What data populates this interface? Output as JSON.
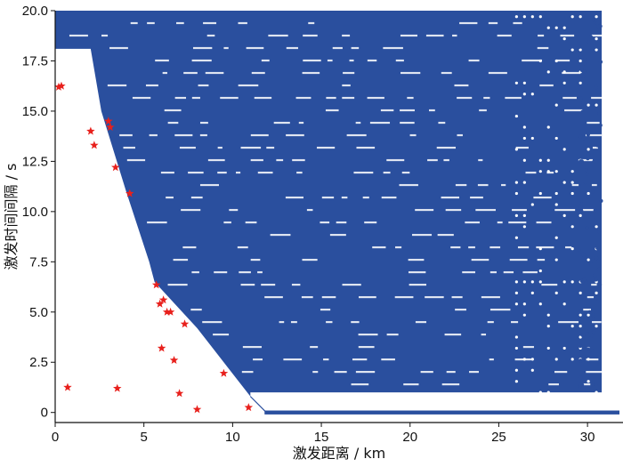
{
  "chart_data": {
    "type": "scatter",
    "xlabel": "激发距离 / km",
    "ylabel": "激发时间间隔 / s",
    "xlim": [
      0,
      32
    ],
    "ylim": [
      -0.5,
      20
    ],
    "xticks": [
      0,
      5,
      10,
      15,
      20,
      25,
      30
    ],
    "yticks": [
      0.0,
      2.5,
      5.0,
      7.5,
      10.0,
      12.5,
      15.0,
      17.5,
      20.0
    ],
    "xtick_labels": [
      "0",
      "5",
      "10",
      "15",
      "20",
      "25",
      "30"
    ],
    "ytick_labels": [
      "0",
      "2.5",
      "5.0",
      "7.5",
      "10.0",
      "12.5",
      "15.0",
      "17.5",
      "20.0"
    ],
    "grid": false,
    "series": [
      {
        "marker": "circle",
        "color": "#2a4f9e",
        "description_points": "dense blue cloud",
        "boundary": [
          [
            0,
            18.1
          ],
          [
            2.0,
            18.1
          ],
          [
            2.6,
            15.0
          ],
          [
            4.0,
            11.0
          ],
          [
            5.3,
            7.5
          ],
          [
            5.6,
            6.5
          ],
          [
            8.0,
            4.2
          ],
          [
            11.0,
            0.8
          ],
          [
            11.2,
            0.6
          ],
          [
            11.7,
            0.0
          ]
        ],
        "floor_band": [
          [
            11.0,
            1.0
          ],
          [
            30.5,
            1.0
          ]
        ],
        "zero_line": [
          [
            11.8,
            0.0
          ],
          [
            31.8,
            0.0
          ]
        ],
        "x_extent": [
          0,
          30.8
        ]
      },
      {
        "marker": "star",
        "color": "#e8201c",
        "points": [
          [
            0.2,
            16.2
          ],
          [
            0.35,
            16.25
          ],
          [
            0.7,
            1.25
          ],
          [
            2.0,
            14.0
          ],
          [
            2.2,
            13.3
          ],
          [
            3.0,
            14.5
          ],
          [
            3.1,
            14.2
          ],
          [
            3.4,
            12.2
          ],
          [
            3.5,
            1.2
          ],
          [
            4.2,
            10.9
          ],
          [
            5.7,
            6.35
          ],
          [
            5.9,
            5.4
          ],
          [
            6.1,
            5.6
          ],
          [
            6.0,
            3.2
          ],
          [
            6.3,
            5.0
          ],
          [
            6.5,
            5.0
          ],
          [
            6.7,
            2.6
          ],
          [
            7.0,
            0.95
          ],
          [
            7.3,
            4.4
          ],
          [
            8.0,
            0.15
          ],
          [
            9.5,
            1.95
          ],
          [
            10.9,
            0.25
          ]
        ]
      }
    ]
  }
}
